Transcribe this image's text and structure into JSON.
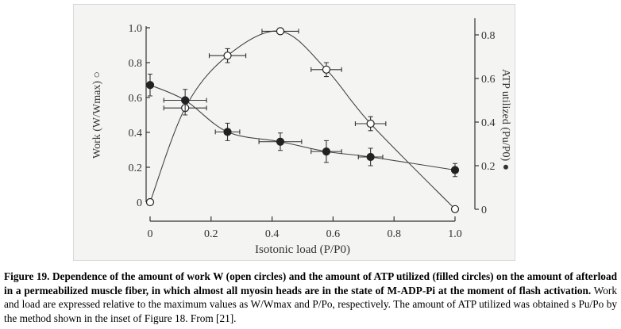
{
  "chart_data": {
    "type": "scatter",
    "xlabel": "Isotonic load (P/P0)",
    "ylabel_left": "Work (W/Wmax) ○",
    "ylabel_right": "ATP utilized (Pu/P0) ●",
    "xlim": [
      0,
      1.0
    ],
    "ylim_left": [
      0,
      1.0
    ],
    "ylim_right": [
      0,
      0.8
    ],
    "x_ticks": [
      "0",
      "0.2",
      "0.4",
      "0.6",
      "0.8",
      "1.0"
    ],
    "y_ticks_left": [
      "0",
      "0.2",
      "0.4",
      "0.6",
      "0.8",
      "1.0"
    ],
    "y_ticks_right": [
      "0",
      "0.2",
      "0.4",
      "0.6",
      "0.8"
    ],
    "grid": false,
    "series": [
      {
        "name": "Work (open circles)",
        "axis": "left",
        "marker": "open",
        "x": [
          0,
          0.115,
          0.254,
          0.427,
          0.578,
          0.723,
          1.0
        ],
        "y": [
          0,
          0.54,
          0.84,
          0.98,
          0.76,
          0.45,
          -0.04
        ],
        "xerr": [
          0,
          0.07,
          0.06,
          0.06,
          0.05,
          0.05,
          0
        ],
        "yerr": [
          0,
          0.04,
          0.04,
          0,
          0.04,
          0.04,
          0
        ]
      },
      {
        "name": "ATP utilized (filled circles)",
        "axis": "right",
        "marker": "filled",
        "x": [
          0,
          0.115,
          0.254,
          0.427,
          0.578,
          0.723,
          1.0
        ],
        "y": [
          0.57,
          0.5,
          0.355,
          0.31,
          0.265,
          0.24,
          0.18
        ],
        "xerr": [
          0,
          0.07,
          0.04,
          0.07,
          0.05,
          0.04,
          0
        ],
        "yerr": [
          0.05,
          0.05,
          0.04,
          0.04,
          0.05,
          0.04,
          0.03
        ]
      }
    ]
  },
  "caption": {
    "bold": "Figure 19. Dependence of the amount of work W (open circles) and the amount of ATP utilized (filled circles) on the amount of afterload in a permeabilized muscle fiber, in which almost all myosin heads are in the state of M-ADP-Pi at the moment of flash activation.",
    "normal": " Work and load are expressed relative to the maximum values as W/Wmax and P/Po, respectively. The amount of ATP utilized was obtained s Pu/Po by the method shown in the inset of Figure 18. From [21]."
  }
}
